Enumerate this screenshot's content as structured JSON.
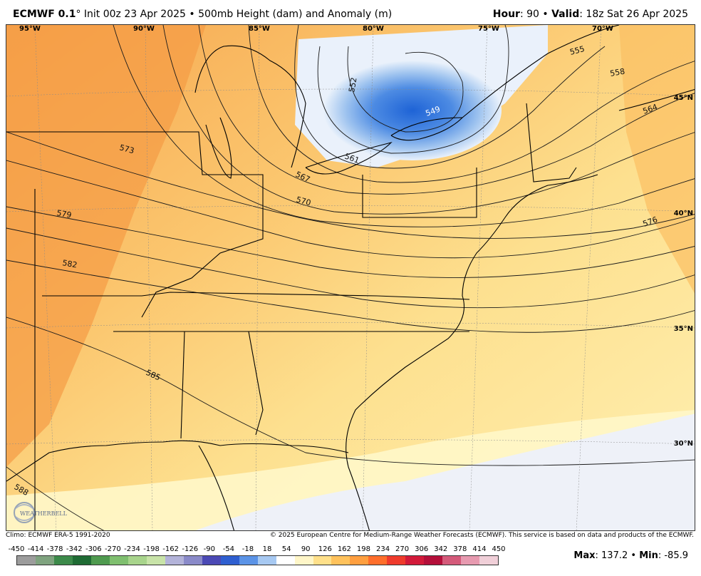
{
  "header": {
    "model": "ECMWF 0.1",
    "init": "° Init 00z 23 Apr 2025 • 500mb Height (dam) and Anomaly (m)",
    "hour_label": "Hour",
    "hour_value": ": 90 • ",
    "valid_label": "Valid",
    "valid_value": ": 18z Sat 26 Apr 2025"
  },
  "longitude_labels": [
    "95°W",
    "90°W",
    "85°W",
    "80°W",
    "75°W",
    "70°W"
  ],
  "latitude_labels": [
    "45°N",
    "40°N",
    "35°N",
    "30°N"
  ],
  "contour_labels": [
    "552",
    "549",
    "555",
    "558",
    "561",
    "564",
    "567",
    "570",
    "573",
    "576",
    "579",
    "582",
    "585",
    "588"
  ],
  "credits": {
    "climo": "Climo: ECMWF ERA-5 1991-2020",
    "copyright": "© 2025 European Centre for Medium-Range Weather Forecasts (ECMWF). This service is based on data and products of the ECMWF."
  },
  "colorbar": {
    "labels": [
      "-450",
      "-414",
      "-378",
      "-342",
      "-306",
      "-270",
      "-234",
      "-198",
      "-162",
      "-126",
      "-90",
      "-54",
      "-18",
      "18",
      "54",
      "90",
      "126",
      "162",
      "198",
      "234",
      "270",
      "306",
      "342",
      "378",
      "414",
      "450"
    ],
    "colors": [
      "#9c9c9c",
      "#7fa37f",
      "#3c8a4a",
      "#1f6b34",
      "#4f9a4f",
      "#7fbf6f",
      "#a8d48c",
      "#c8e3a8",
      "#b3b3d9",
      "#8a8ac9",
      "#4b49b5",
      "#2f5fd0",
      "#5b93e6",
      "#a7c9f2",
      "#ffffff",
      "#fff6c8",
      "#ffe08a",
      "#ffc25c",
      "#ff9f3f",
      "#ff6e2b",
      "#ef3b2c",
      "#d21a3a",
      "#b40f3a",
      "#d45a7a",
      "#e79ab0",
      "#f0cfd8"
    ]
  },
  "maxmin": {
    "max_label": "Max",
    "max_value": ": 137.2 • ",
    "min_label": "Min",
    "min_value": ": -85.9"
  },
  "logo_text": "WEATHERBELL"
}
